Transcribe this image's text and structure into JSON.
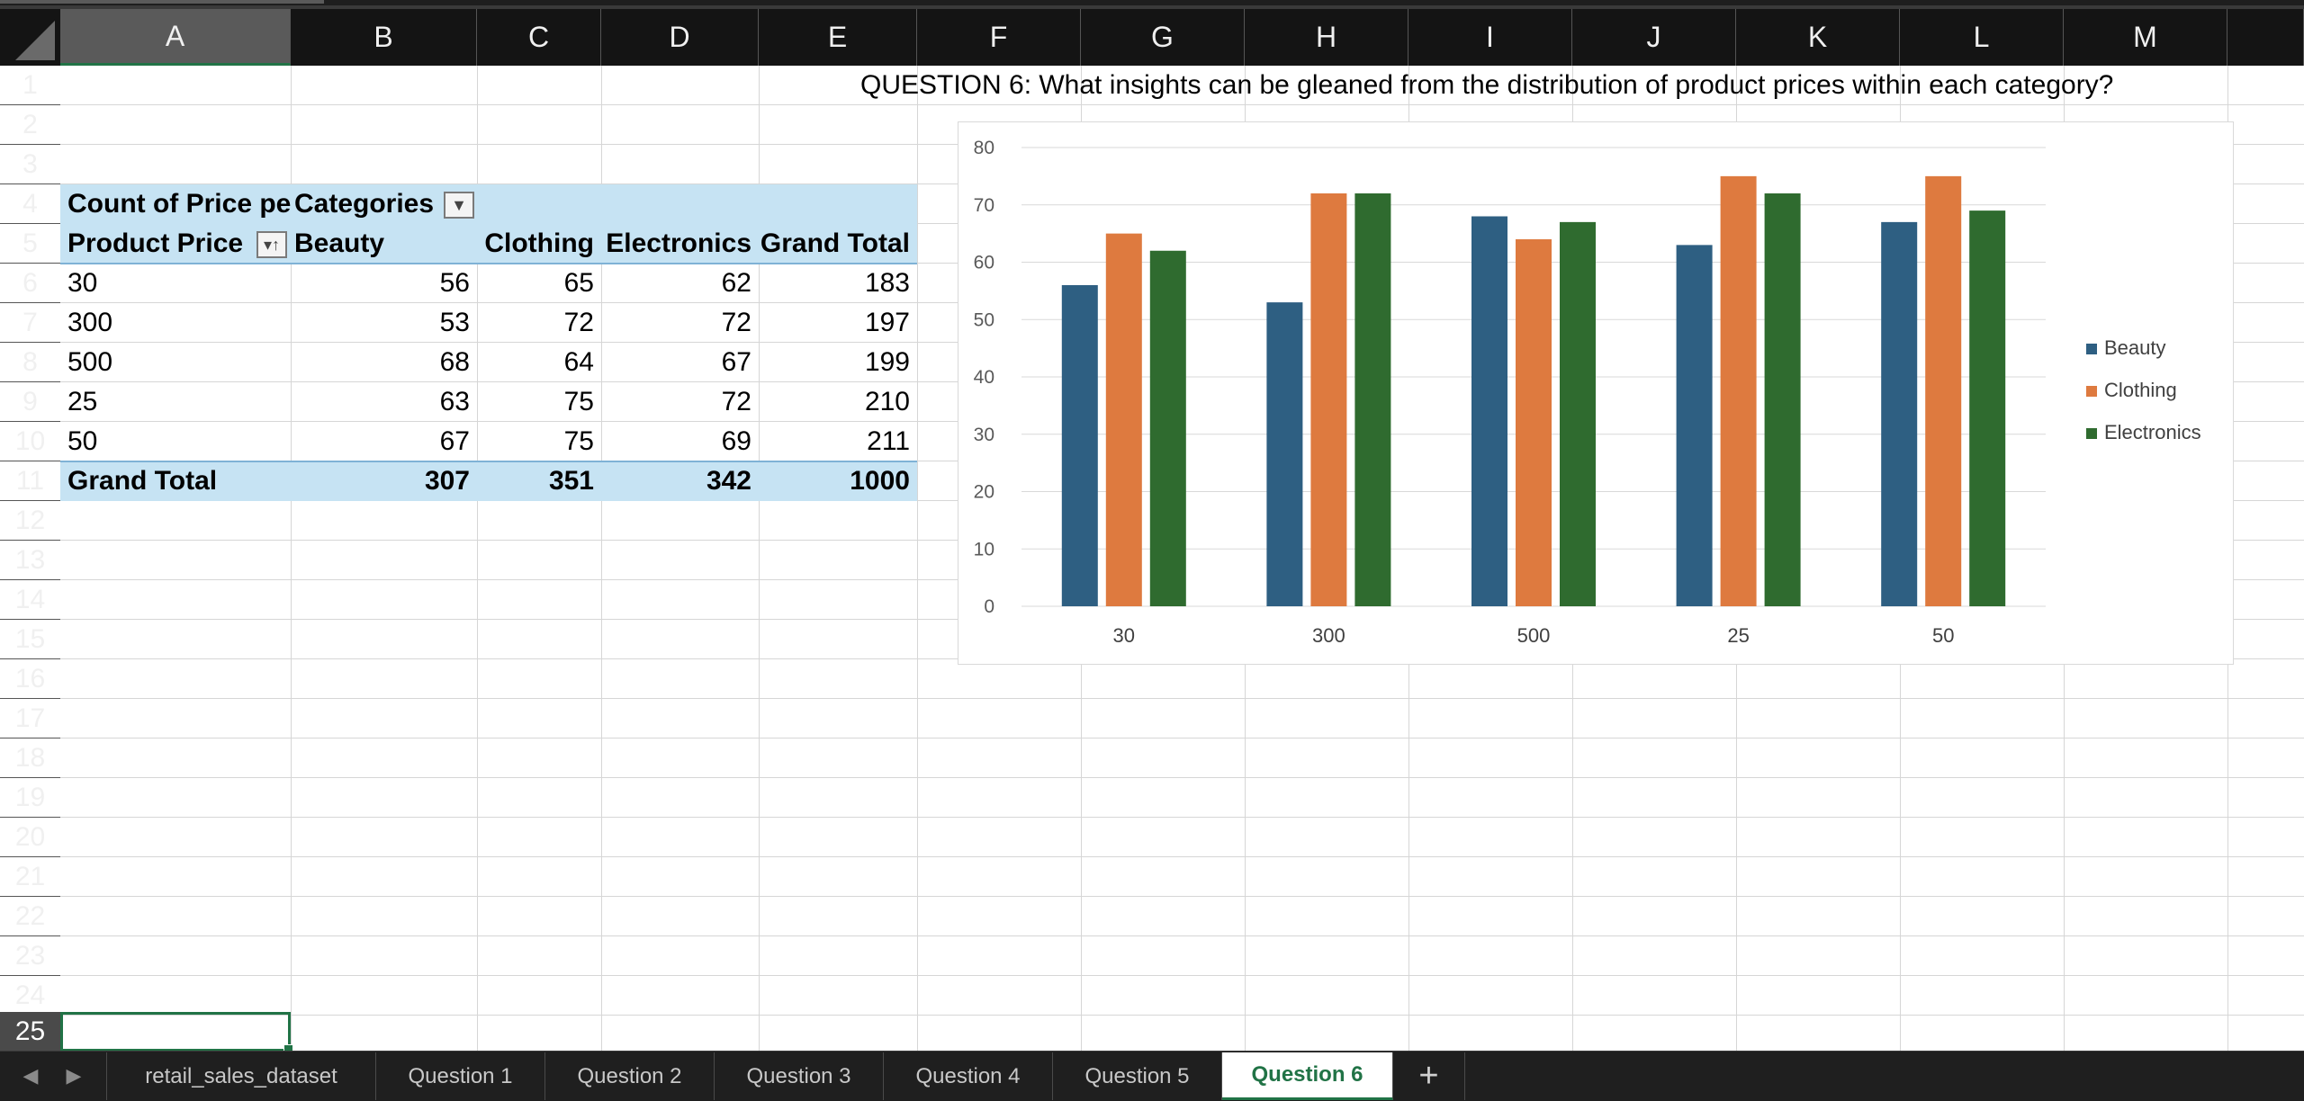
{
  "columns": [
    "A",
    "B",
    "C",
    "D",
    "E",
    "F",
    "G",
    "H",
    "I",
    "J",
    "K",
    "L",
    "M"
  ],
  "rows": [
    "1",
    "2",
    "3",
    "4",
    "5",
    "6",
    "7",
    "8",
    "9",
    "10",
    "11",
    "12",
    "13",
    "14",
    "15",
    "16",
    "17",
    "18",
    "19",
    "20",
    "21",
    "22",
    "23",
    "24",
    "25"
  ],
  "question": "QUESTION 6: What insights can be gleaned from the distribution of product prices within each category?",
  "pivot": {
    "corner_label": "Count of Price per Unit",
    "categories_label": "Categories",
    "row_header": "Product Price",
    "col_headers": [
      "Beauty",
      "Clothing",
      "Electronics",
      "Grand Total"
    ],
    "rows": [
      {
        "label": "30",
        "values": [
          "56",
          "65",
          "62",
          "183"
        ]
      },
      {
        "label": "300",
        "values": [
          "53",
          "72",
          "72",
          "197"
        ]
      },
      {
        "label": "500",
        "values": [
          "68",
          "64",
          "67",
          "199"
        ]
      },
      {
        "label": "25",
        "values": [
          "63",
          "75",
          "72",
          "210"
        ]
      },
      {
        "label": "50",
        "values": [
          "67",
          "75",
          "69",
          "211"
        ]
      }
    ],
    "total_label": "Grand Total",
    "totals": [
      "307",
      "351",
      "342",
      "1000"
    ]
  },
  "chart_data": {
    "type": "bar",
    "categories": [
      "30",
      "300",
      "500",
      "25",
      "50"
    ],
    "series": [
      {
        "name": "Beauty",
        "values": [
          56,
          53,
          68,
          63,
          67
        ],
        "color": "#2e5f82"
      },
      {
        "name": "Clothing",
        "values": [
          65,
          72,
          64,
          75,
          75
        ],
        "color": "#de7a3f"
      },
      {
        "name": "Electronics",
        "values": [
          62,
          72,
          67,
          72,
          69
        ],
        "color": "#2f6b2f"
      }
    ],
    "ylim": [
      0,
      80
    ],
    "yticks": [
      "0",
      "10",
      "20",
      "30",
      "40",
      "50",
      "60",
      "70",
      "80"
    ],
    "grid": true,
    "legend": "right"
  },
  "tabs": [
    "retail_sales_dataset",
    "Question 1",
    "Question 2",
    "Question 3",
    "Question 4",
    "Question 5",
    "Question 6"
  ],
  "active_tab": "Question 6",
  "add_tab_label": "+"
}
